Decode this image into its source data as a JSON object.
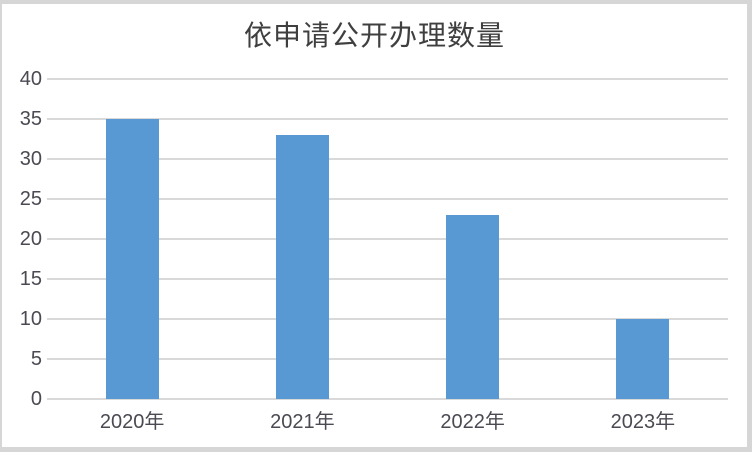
{
  "chart_data": {
    "type": "bar",
    "title": "依申请公开办理数量",
    "categories": [
      "2020年",
      "2021年",
      "2022年",
      "2023年"
    ],
    "values": [
      35,
      33,
      23,
      10
    ],
    "xlabel": "",
    "ylabel": "",
    "ylim": [
      0,
      40
    ],
    "ytick_step": 5,
    "grid": true,
    "legend_position": "none",
    "bar_color": "#5899D3",
    "gridline_color": "#D9D9D9",
    "axis_label_color": "#4A4A52",
    "title_color": "#3F3F3F",
    "frame_border_color": "#D6D6D6",
    "background_color": "#FFFFFF"
  }
}
